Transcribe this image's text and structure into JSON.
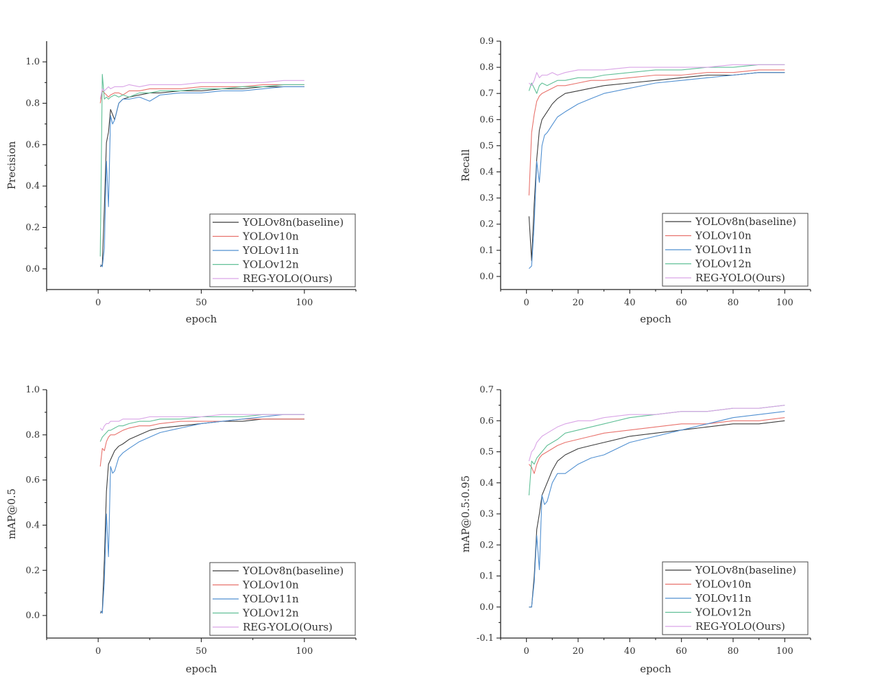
{
  "legend_series": [
    {
      "name": "YOLOv8n(baseline)",
      "color": "#3b3b3b"
    },
    {
      "name": "YOLOv10n",
      "color": "#e8716b"
    },
    {
      "name": "YOLOv11n",
      "color": "#4f8fd1"
    },
    {
      "name": "YOLOv12n",
      "color": "#5fbf96"
    },
    {
      "name": "REG-YOLO(Ours)",
      "color": "#d9a3e6"
    }
  ],
  "chart_data": [
    {
      "type": "line",
      "xlabel": "epoch",
      "ylabel": "Precision",
      "xlim": [
        -25,
        125
      ],
      "ylim": [
        -0.1,
        1.1
      ],
      "xticks": [
        0,
        50,
        100
      ],
      "yticks": [
        0.0,
        0.2,
        0.4,
        0.6,
        0.8,
        1.0
      ],
      "ytick_labels": [
        "0.0",
        "0.2",
        "0.4",
        "0.6",
        "0.8",
        "1.0"
      ],
      "legend": "bottom-right",
      "grid": false,
      "series": [
        {
          "name": "YOLOv8n(baseline)",
          "x": [
            1,
            2,
            3,
            4,
            5,
            6,
            8,
            10,
            12,
            15,
            20,
            25,
            30,
            40,
            50,
            60,
            70,
            80,
            90,
            100
          ],
          "y": [
            0.01,
            0.02,
            0.3,
            0.61,
            0.66,
            0.77,
            0.72,
            0.8,
            0.82,
            0.83,
            0.84,
            0.85,
            0.85,
            0.86,
            0.86,
            0.87,
            0.87,
            0.88,
            0.88,
            0.88
          ]
        },
        {
          "name": "YOLOv10n",
          "x": [
            1,
            2,
            3,
            4,
            5,
            6,
            8,
            10,
            12,
            15,
            20,
            25,
            30,
            40,
            50,
            60,
            70,
            80,
            90,
            100
          ],
          "y": [
            0.8,
            0.86,
            0.85,
            0.84,
            0.83,
            0.84,
            0.85,
            0.85,
            0.84,
            0.86,
            0.86,
            0.87,
            0.87,
            0.87,
            0.88,
            0.88,
            0.88,
            0.89,
            0.89,
            0.89
          ]
        },
        {
          "name": "YOLOv11n",
          "x": [
            1,
            2,
            3,
            4,
            5,
            6,
            7,
            8,
            10,
            12,
            15,
            20,
            25,
            30,
            40,
            50,
            60,
            70,
            80,
            90,
            100
          ],
          "y": [
            0.02,
            0.01,
            0.1,
            0.52,
            0.3,
            0.74,
            0.7,
            0.72,
            0.8,
            0.82,
            0.82,
            0.83,
            0.81,
            0.84,
            0.85,
            0.85,
            0.86,
            0.86,
            0.87,
            0.88,
            0.88
          ]
        },
        {
          "name": "YOLOv12n",
          "x": [
            1,
            2,
            3,
            4,
            5,
            6,
            8,
            10,
            12,
            15,
            20,
            25,
            30,
            40,
            50,
            60,
            70,
            80,
            90,
            100
          ],
          "y": [
            0.06,
            0.94,
            0.82,
            0.83,
            0.82,
            0.83,
            0.84,
            0.83,
            0.84,
            0.83,
            0.85,
            0.85,
            0.86,
            0.86,
            0.87,
            0.87,
            0.88,
            0.88,
            0.89,
            0.89
          ]
        },
        {
          "name": "REG-YOLO(Ours)",
          "x": [
            1,
            2,
            3,
            4,
            5,
            6,
            8,
            10,
            12,
            15,
            20,
            25,
            30,
            40,
            50,
            60,
            70,
            80,
            90,
            100
          ],
          "y": [
            0.82,
            0.87,
            0.86,
            0.87,
            0.88,
            0.87,
            0.88,
            0.88,
            0.88,
            0.89,
            0.88,
            0.89,
            0.89,
            0.89,
            0.9,
            0.9,
            0.9,
            0.9,
            0.91,
            0.91
          ]
        }
      ]
    },
    {
      "type": "line",
      "xlabel": "epoch",
      "ylabel": "Recall",
      "xlim": [
        -10,
        110
      ],
      "ylim": [
        -0.05,
        0.9
      ],
      "xticks": [
        0,
        20,
        40,
        60,
        80,
        100
      ],
      "yticks": [
        0.0,
        0.1,
        0.2,
        0.3,
        0.4,
        0.5,
        0.6,
        0.7,
        0.8,
        0.9
      ],
      "ytick_labels": [
        "0.0",
        "0.1",
        "0.2",
        "0.3",
        "0.4",
        "0.5",
        "0.6",
        "0.7",
        "0.8",
        "0.9"
      ],
      "legend": "bottom-right",
      "grid": false,
      "series": [
        {
          "name": "YOLOv8n(baseline)",
          "x": [
            1,
            2,
            3,
            4,
            5,
            6,
            8,
            10,
            12,
            15,
            20,
            25,
            30,
            40,
            50,
            60,
            70,
            80,
            90,
            100
          ],
          "y": [
            0.23,
            0.06,
            0.28,
            0.45,
            0.56,
            0.6,
            0.63,
            0.66,
            0.68,
            0.7,
            0.71,
            0.72,
            0.73,
            0.74,
            0.75,
            0.76,
            0.77,
            0.77,
            0.78,
            0.78
          ]
        },
        {
          "name": "YOLOv10n",
          "x": [
            1,
            2,
            3,
            4,
            5,
            6,
            8,
            10,
            12,
            15,
            20,
            25,
            30,
            40,
            50,
            60,
            70,
            80,
            90,
            100
          ],
          "y": [
            0.31,
            0.55,
            0.62,
            0.67,
            0.69,
            0.7,
            0.71,
            0.72,
            0.73,
            0.73,
            0.74,
            0.75,
            0.75,
            0.76,
            0.77,
            0.77,
            0.78,
            0.78,
            0.79,
            0.79
          ]
        },
        {
          "name": "YOLOv11n",
          "x": [
            1,
            2,
            3,
            4,
            5,
            6,
            7,
            8,
            10,
            12,
            15,
            20,
            25,
            30,
            40,
            50,
            60,
            70,
            80,
            90,
            100
          ],
          "y": [
            0.03,
            0.04,
            0.2,
            0.44,
            0.36,
            0.5,
            0.54,
            0.55,
            0.58,
            0.61,
            0.63,
            0.66,
            0.68,
            0.7,
            0.72,
            0.74,
            0.75,
            0.76,
            0.77,
            0.78,
            0.78
          ]
        },
        {
          "name": "YOLOv12n",
          "x": [
            1,
            2,
            3,
            4,
            5,
            6,
            8,
            10,
            12,
            15,
            20,
            25,
            30,
            40,
            50,
            60,
            70,
            80,
            90,
            100
          ],
          "y": [
            0.71,
            0.74,
            0.72,
            0.7,
            0.73,
            0.74,
            0.73,
            0.74,
            0.75,
            0.75,
            0.76,
            0.76,
            0.77,
            0.78,
            0.79,
            0.79,
            0.8,
            0.8,
            0.81,
            0.81
          ]
        },
        {
          "name": "REG-YOLO(Ours)",
          "x": [
            1,
            2,
            3,
            4,
            5,
            6,
            8,
            10,
            12,
            15,
            20,
            25,
            30,
            40,
            50,
            60,
            70,
            80,
            90,
            100
          ],
          "y": [
            0.74,
            0.73,
            0.75,
            0.78,
            0.76,
            0.77,
            0.77,
            0.78,
            0.77,
            0.78,
            0.79,
            0.79,
            0.79,
            0.8,
            0.8,
            0.8,
            0.8,
            0.81,
            0.81,
            0.81
          ]
        }
      ]
    },
    {
      "type": "line",
      "xlabel": "epoch",
      "ylabel": "mAP@0.5",
      "xlim": [
        -25,
        125
      ],
      "ylim": [
        -0.1,
        1.0
      ],
      "xticks": [
        0,
        50,
        100
      ],
      "yticks": [
        0.0,
        0.2,
        0.4,
        0.6,
        0.8,
        1.0
      ],
      "ytick_labels": [
        "0.0",
        "0.2",
        "0.4",
        "0.6",
        "0.8",
        "1.0"
      ],
      "legend": "bottom-right",
      "grid": false,
      "series": [
        {
          "name": "YOLOv8n(baseline)",
          "x": [
            1,
            2,
            3,
            4,
            5,
            6,
            8,
            10,
            12,
            15,
            20,
            25,
            30,
            40,
            50,
            60,
            70,
            80,
            90,
            100
          ],
          "y": [
            0.01,
            0.02,
            0.25,
            0.55,
            0.67,
            0.69,
            0.73,
            0.75,
            0.76,
            0.78,
            0.8,
            0.82,
            0.83,
            0.84,
            0.85,
            0.86,
            0.86,
            0.87,
            0.87,
            0.87
          ]
        },
        {
          "name": "YOLOv10n",
          "x": [
            1,
            2,
            3,
            4,
            5,
            6,
            8,
            10,
            12,
            15,
            20,
            25,
            30,
            40,
            50,
            60,
            70,
            80,
            90,
            100
          ],
          "y": [
            0.66,
            0.74,
            0.73,
            0.77,
            0.79,
            0.8,
            0.8,
            0.81,
            0.82,
            0.83,
            0.84,
            0.84,
            0.85,
            0.86,
            0.86,
            0.86,
            0.87,
            0.87,
            0.87,
            0.87
          ]
        },
        {
          "name": "YOLOv11n",
          "x": [
            1,
            2,
            3,
            4,
            5,
            6,
            7,
            8,
            10,
            12,
            15,
            20,
            25,
            30,
            40,
            50,
            60,
            70,
            80,
            90,
            100
          ],
          "y": [
            0.02,
            0.01,
            0.15,
            0.45,
            0.26,
            0.66,
            0.63,
            0.64,
            0.7,
            0.72,
            0.74,
            0.77,
            0.79,
            0.81,
            0.83,
            0.85,
            0.86,
            0.87,
            0.88,
            0.89,
            0.89
          ]
        },
        {
          "name": "YOLOv12n",
          "x": [
            1,
            2,
            3,
            4,
            5,
            6,
            8,
            10,
            12,
            15,
            20,
            25,
            30,
            40,
            50,
            60,
            70,
            80,
            90,
            100
          ],
          "y": [
            0.77,
            0.79,
            0.8,
            0.81,
            0.82,
            0.82,
            0.83,
            0.84,
            0.84,
            0.85,
            0.86,
            0.86,
            0.87,
            0.87,
            0.88,
            0.88,
            0.88,
            0.89,
            0.89,
            0.89
          ]
        },
        {
          "name": "REG-YOLO(Ours)",
          "x": [
            1,
            2,
            3,
            4,
            5,
            6,
            8,
            10,
            12,
            15,
            20,
            25,
            30,
            40,
            50,
            60,
            70,
            80,
            90,
            100
          ],
          "y": [
            0.83,
            0.82,
            0.84,
            0.85,
            0.85,
            0.86,
            0.86,
            0.86,
            0.87,
            0.87,
            0.87,
            0.88,
            0.88,
            0.88,
            0.88,
            0.89,
            0.89,
            0.89,
            0.89,
            0.89
          ]
        }
      ]
    },
    {
      "type": "line",
      "xlabel": "epoch",
      "ylabel": "mAP@0.5:0.95",
      "xlim": [
        -10,
        110
      ],
      "ylim": [
        -0.1,
        0.7
      ],
      "xticks": [
        0,
        20,
        40,
        60,
        80,
        100
      ],
      "yticks": [
        -0.1,
        0.0,
        0.1,
        0.2,
        0.3,
        0.4,
        0.5,
        0.6,
        0.7
      ],
      "ytick_labels": [
        "-0.1",
        "0.0",
        "0.1",
        "0.2",
        "0.3",
        "0.4",
        "0.5",
        "0.6",
        "0.7"
      ],
      "legend": "bottom-right",
      "grid": false,
      "series": [
        {
          "name": "YOLOv8n(baseline)",
          "x": [
            1,
            2,
            3,
            4,
            5,
            6,
            8,
            10,
            12,
            15,
            20,
            25,
            30,
            40,
            50,
            60,
            70,
            80,
            90,
            100
          ],
          "y": [
            0.0,
            0.0,
            0.1,
            0.25,
            0.3,
            0.36,
            0.4,
            0.44,
            0.47,
            0.49,
            0.51,
            0.52,
            0.53,
            0.55,
            0.56,
            0.57,
            0.58,
            0.59,
            0.59,
            0.6
          ]
        },
        {
          "name": "YOLOv10n",
          "x": [
            1,
            2,
            3,
            4,
            5,
            6,
            8,
            10,
            12,
            15,
            20,
            25,
            30,
            40,
            50,
            60,
            70,
            80,
            90,
            100
          ],
          "y": [
            0.46,
            0.45,
            0.43,
            0.46,
            0.48,
            0.49,
            0.5,
            0.51,
            0.52,
            0.53,
            0.54,
            0.55,
            0.56,
            0.57,
            0.58,
            0.59,
            0.59,
            0.6,
            0.6,
            0.61
          ]
        },
        {
          "name": "YOLOv11n",
          "x": [
            1,
            2,
            3,
            4,
            5,
            6,
            7,
            8,
            10,
            12,
            15,
            20,
            25,
            30,
            40,
            50,
            60,
            70,
            80,
            90,
            100
          ],
          "y": [
            0.0,
            0.0,
            0.08,
            0.23,
            0.12,
            0.36,
            0.33,
            0.34,
            0.4,
            0.43,
            0.43,
            0.46,
            0.48,
            0.49,
            0.53,
            0.55,
            0.57,
            0.59,
            0.61,
            0.62,
            0.63
          ]
        },
        {
          "name": "YOLOv12n",
          "x": [
            1,
            2,
            3,
            4,
            5,
            6,
            8,
            10,
            12,
            15,
            20,
            25,
            30,
            40,
            50,
            60,
            70,
            80,
            90,
            100
          ],
          "y": [
            0.36,
            0.47,
            0.46,
            0.48,
            0.49,
            0.5,
            0.52,
            0.53,
            0.54,
            0.56,
            0.57,
            0.58,
            0.59,
            0.61,
            0.62,
            0.63,
            0.63,
            0.64,
            0.64,
            0.65
          ]
        },
        {
          "name": "REG-YOLO(Ours)",
          "x": [
            1,
            2,
            3,
            4,
            5,
            6,
            8,
            10,
            12,
            15,
            20,
            25,
            30,
            40,
            50,
            60,
            70,
            80,
            90,
            100
          ],
          "y": [
            0.47,
            0.5,
            0.51,
            0.53,
            0.54,
            0.55,
            0.56,
            0.57,
            0.58,
            0.59,
            0.6,
            0.6,
            0.61,
            0.62,
            0.62,
            0.63,
            0.63,
            0.64,
            0.64,
            0.65
          ]
        }
      ]
    }
  ]
}
